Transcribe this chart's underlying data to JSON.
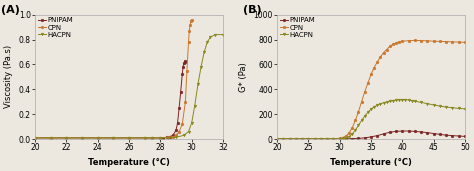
{
  "panel_A": {
    "label": "(A)",
    "xlabel": "Temperature (°C)",
    "ylabel": "Viscosity (Pa.s)",
    "xlim": [
      20,
      32
    ],
    "ylim": [
      0,
      1.0
    ],
    "xticks": [
      20,
      22,
      24,
      26,
      28,
      30,
      32
    ],
    "yticks": [
      0.0,
      0.2,
      0.4,
      0.6,
      0.8,
      1.0
    ],
    "series": {
      "PNIPAM": {
        "color": "#7b2525",
        "marker": "o",
        "x": [
          20,
          21,
          22,
          23,
          24,
          25,
          26,
          27,
          27.5,
          28,
          28.2,
          28.4,
          28.6,
          28.8,
          29.0,
          29.1,
          29.2,
          29.3,
          29.4,
          29.45,
          29.5,
          29.55,
          29.6
        ],
        "y": [
          0.01,
          0.01,
          0.01,
          0.01,
          0.01,
          0.01,
          0.01,
          0.01,
          0.01,
          0.01,
          0.01,
          0.015,
          0.02,
          0.03,
          0.07,
          0.13,
          0.25,
          0.38,
          0.52,
          0.58,
          0.61,
          0.62,
          0.63
        ]
      },
      "CPN": {
        "color": "#c87830",
        "marker": "o",
        "x": [
          20,
          21,
          22,
          23,
          24,
          25,
          26,
          27,
          27.5,
          28,
          28.5,
          28.8,
          29.0,
          29.2,
          29.4,
          29.6,
          29.7,
          29.8,
          29.85,
          29.9,
          29.95,
          30.0
        ],
        "y": [
          0.01,
          0.01,
          0.01,
          0.01,
          0.01,
          0.01,
          0.01,
          0.01,
          0.01,
          0.01,
          0.015,
          0.02,
          0.03,
          0.06,
          0.12,
          0.3,
          0.55,
          0.78,
          0.87,
          0.92,
          0.95,
          0.96
        ]
      },
      "HACPN": {
        "color": "#888820",
        "marker": "v",
        "x": [
          20,
          21,
          22,
          23,
          24,
          25,
          26,
          27,
          27.5,
          28,
          28.5,
          29.0,
          29.5,
          29.8,
          30.0,
          30.2,
          30.4,
          30.6,
          30.8,
          31.0,
          31.2,
          31.5,
          32.0
        ],
        "y": [
          0.01,
          0.01,
          0.01,
          0.01,
          0.01,
          0.01,
          0.01,
          0.01,
          0.01,
          0.01,
          0.01,
          0.015,
          0.03,
          0.06,
          0.13,
          0.27,
          0.44,
          0.58,
          0.7,
          0.78,
          0.82,
          0.84,
          0.84
        ]
      }
    }
  },
  "panel_B": {
    "label": "(B)",
    "xlabel": "Temperature (°C)",
    "ylabel": "G* (Pa)",
    "xlim": [
      20,
      50
    ],
    "ylim": [
      0,
      1000
    ],
    "xticks": [
      20,
      25,
      30,
      35,
      40,
      45,
      50
    ],
    "yticks": [
      0,
      200,
      400,
      600,
      800,
      1000
    ],
    "series": {
      "PNIPAM": {
        "color": "#7b2525",
        "marker": "o",
        "x": [
          20,
          21,
          22,
          23,
          24,
          25,
          26,
          27,
          28,
          29,
          30,
          31,
          32,
          33,
          34,
          35,
          36,
          37,
          38,
          39,
          40,
          41,
          42,
          43,
          44,
          45,
          46,
          47,
          48,
          49,
          50
        ],
        "y": [
          2,
          2,
          2,
          2,
          2,
          2,
          2,
          2,
          2,
          2,
          2,
          3,
          4,
          6,
          10,
          18,
          28,
          42,
          55,
          62,
          65,
          65,
          62,
          58,
          52,
          45,
          38,
          32,
          28,
          25,
          22
        ]
      },
      "CPN": {
        "color": "#c87830",
        "marker": "o",
        "x": [
          20,
          21,
          22,
          23,
          24,
          25,
          26,
          27,
          28,
          29,
          30,
          30.5,
          31,
          31.5,
          32,
          32.5,
          33,
          33.5,
          34,
          34.5,
          35,
          35.5,
          36,
          36.5,
          37,
          37.5,
          38,
          38.5,
          39,
          39.5,
          40,
          41,
          42,
          43,
          44,
          45,
          46,
          47,
          48,
          49,
          50
        ],
        "y": [
          2,
          2,
          2,
          2,
          2,
          2,
          2,
          2,
          2,
          3,
          6,
          12,
          25,
          50,
          90,
          150,
          220,
          300,
          380,
          450,
          520,
          575,
          620,
          660,
          695,
          720,
          745,
          762,
          773,
          782,
          787,
          791,
          793,
          792,
          790,
          787,
          785,
          784,
          782,
          780,
          778
        ]
      },
      "HACPN": {
        "color": "#888820",
        "marker": "v",
        "x": [
          20,
          21,
          22,
          23,
          24,
          25,
          26,
          27,
          28,
          29,
          30,
          30.5,
          31,
          31.5,
          32,
          32.5,
          33,
          33.5,
          34,
          34.5,
          35,
          35.5,
          36,
          36.5,
          37,
          37.5,
          38,
          38.5,
          39,
          39.5,
          40,
          40.5,
          41,
          41.5,
          42,
          43,
          44,
          45,
          46,
          47,
          48,
          49,
          50
        ],
        "y": [
          2,
          2,
          2,
          2,
          2,
          2,
          2,
          2,
          2,
          2,
          3,
          5,
          10,
          20,
          40,
          72,
          110,
          150,
          185,
          215,
          240,
          258,
          272,
          283,
          292,
          298,
          305,
          310,
          314,
          317,
          318,
          318,
          315,
          310,
          305,
          295,
          285,
          275,
          265,
          258,
          252,
          247,
          243
        ]
      }
    }
  },
  "background_color": "#ede8df",
  "markersize": 2.0,
  "linewidth": 0.7,
  "fontsize_label": 6,
  "fontsize_tick": 5.5,
  "fontsize_legend": 5,
  "fontsize_panel": 8
}
